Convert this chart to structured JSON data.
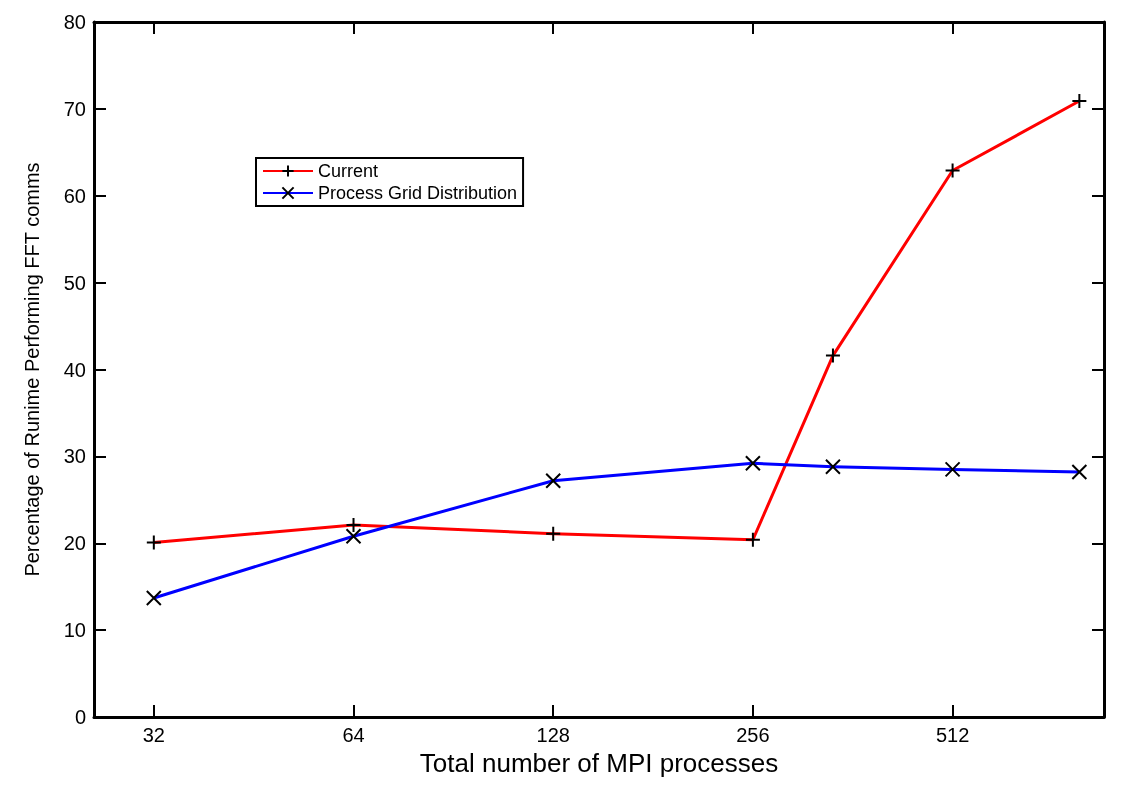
{
  "chart_data": {
    "type": "line",
    "xlabel": "Total number of MPI processes",
    "ylabel": "Percentage of Runime Performing FFT comms",
    "log": "x",
    "xlim": [
      26,
      866
    ],
    "xticks": [
      32,
      64,
      128,
      256,
      512
    ],
    "ylim": [
      0,
      80
    ],
    "yticks": [
      0,
      10,
      20,
      30,
      40,
      50,
      60,
      70,
      80
    ],
    "grid": false,
    "legend": "top left",
    "line_style": "solid",
    "series": [
      {
        "name": "Current",
        "color": "#ff0000",
        "marker": "plus",
        "x": [
          32,
          64,
          128,
          256,
          338,
          512,
          795
        ],
        "values": [
          20.1,
          22.1,
          21.1,
          20.4,
          41.6,
          62.9,
          70.9
        ]
      },
      {
        "name": "Process Grid Distribution",
        "color": "#0000ff",
        "marker": "cross",
        "x": [
          32,
          64,
          128,
          256,
          338,
          512,
          795
        ],
        "values": [
          13.7,
          20.8,
          27.2,
          29.2,
          28.8,
          28.5,
          28.2
        ]
      }
    ]
  }
}
